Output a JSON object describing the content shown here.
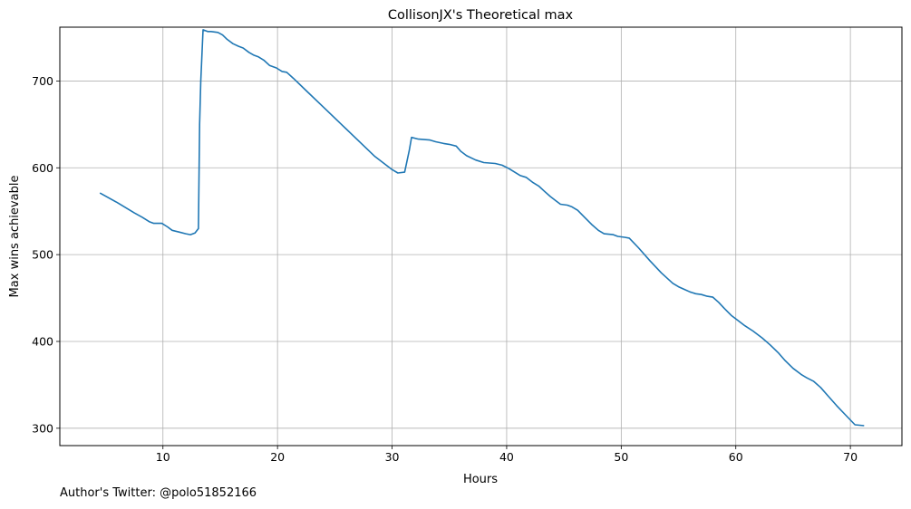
{
  "chart_data": {
    "type": "line",
    "title": "CollisonJX's Theoretical max",
    "xlabel": "Hours",
    "ylabel": "Max wins achievable",
    "xlim": [
      1,
      74.5
    ],
    "ylim": [
      280,
      762
    ],
    "xticks": [
      10,
      20,
      30,
      40,
      50,
      60,
      70
    ],
    "yticks": [
      300,
      400,
      500,
      600,
      700
    ],
    "grid": true,
    "series": [
      {
        "color": "#1f77b4",
        "x": [
          4.5,
          6.0,
          7.5,
          8.2,
          8.8,
          9.2,
          9.9,
          10.4,
          10.8,
          11.4,
          12.0,
          12.4,
          12.8,
          13.1,
          13.2,
          13.3,
          13.5,
          13.9,
          14.2,
          14.8,
          15.2,
          15.6,
          16.1,
          16.6,
          17.0,
          17.5,
          17.9,
          18.3,
          18.8,
          19.3,
          19.9,
          20.4,
          20.8,
          21.4,
          22.5,
          24.0,
          25.5,
          27.0,
          28.5,
          30.0,
          30.5,
          31.1,
          31.5,
          31.7,
          32.3,
          33.3,
          33.8,
          34.5,
          35.0,
          35.6,
          36.0,
          36.5,
          37.3,
          38.0,
          39.0,
          39.6,
          40.2,
          40.7,
          41.2,
          41.7,
          42.3,
          42.8,
          43.3,
          43.8,
          44.3,
          44.7,
          45.3,
          45.7,
          46.2,
          46.8,
          47.4,
          48.0,
          48.5,
          49.3,
          49.7,
          50.3,
          50.7,
          51.5,
          52.5,
          53.5,
          54.5,
          55.0,
          55.5,
          56.0,
          56.5,
          57.0,
          57.5,
          58.0,
          58.5,
          59.0,
          59.6,
          60.2,
          60.8,
          61.5,
          62.3,
          63.0,
          63.7,
          64.3,
          65.0,
          65.7,
          66.2,
          66.8,
          67.4,
          68.0,
          68.8,
          69.6,
          70.4,
          71.2
        ],
        "y": [
          571,
          560,
          548,
          543,
          538,
          536,
          536,
          532,
          528,
          526,
          524,
          523,
          525,
          530,
          650,
          700,
          759,
          757,
          757,
          756,
          753,
          748,
          743,
          740,
          738,
          733,
          730,
          728,
          724,
          718,
          715,
          711,
          710,
          703,
          689,
          670,
          651,
          632,
          613,
          598,
          594,
          595,
          620,
          635,
          633,
          632,
          630,
          628,
          627,
          625,
          619,
          614,
          609,
          606,
          605,
          603,
          599,
          595,
          591,
          589,
          583,
          579,
          573,
          567,
          562,
          558,
          557,
          555,
          551,
          543,
          535,
          528,
          524,
          523,
          521,
          520,
          519,
          508,
          493,
          479,
          467,
          463,
          460,
          457,
          455,
          454,
          452,
          451,
          445,
          438,
          430,
          424,
          418,
          412,
          404,
          396,
          387,
          378,
          369,
          362,
          358,
          354,
          347,
          338,
          326,
          315,
          304,
          303
        ]
      }
    ]
  },
  "footer": {
    "credit": "Author's Twitter: @polo51852166"
  }
}
